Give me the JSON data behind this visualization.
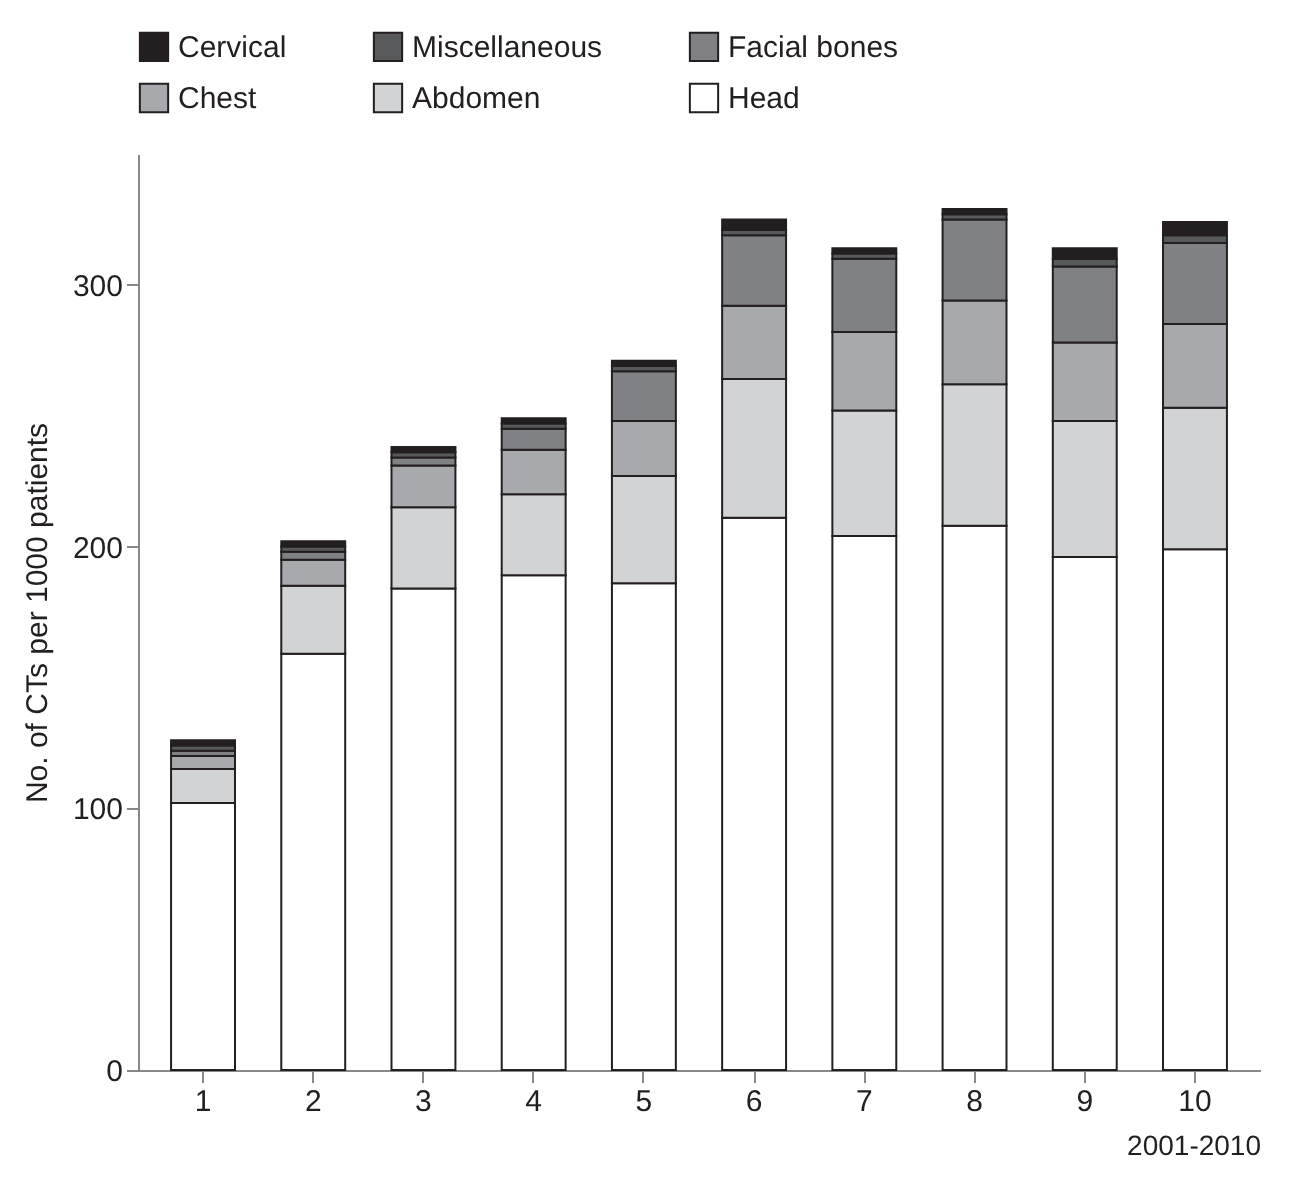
{
  "chart_data": {
    "type": "bar",
    "stacked": true,
    "xlabel": "2001-2010",
    "ylabel": "No. of CTs per 1000 patients",
    "categories": [
      "1",
      "2",
      "3",
      "4",
      "5",
      "6",
      "7",
      "8",
      "9",
      "10"
    ],
    "series": [
      {
        "name": "Head",
        "color": "#ffffff",
        "values": [
          102,
          159,
          184,
          189,
          186,
          211,
          204,
          208,
          196,
          199
        ]
      },
      {
        "name": "Abdomen",
        "color": "#d1d3d4",
        "values": [
          13,
          26,
          31,
          31,
          41,
          53,
          48,
          54,
          52,
          54
        ]
      },
      {
        "name": "Chest",
        "color": "#a7a9ac",
        "values": [
          5,
          10,
          16,
          17,
          21,
          28,
          30,
          32,
          30,
          32
        ]
      },
      {
        "name": "Facial bones",
        "color": "#808184",
        "values": [
          2,
          3,
          3,
          8,
          19,
          27,
          28,
          31,
          29,
          31
        ]
      },
      {
        "name": "Miscellaneous",
        "color": "#58595b",
        "values": [
          2,
          2,
          2,
          2,
          2,
          2,
          2,
          2,
          3,
          3
        ]
      },
      {
        "name": "Cervical",
        "color": "#231f20",
        "values": [
          2,
          2,
          2,
          2,
          2,
          4,
          2,
          2,
          4,
          5
        ]
      }
    ],
    "ylim": [
      0,
      350
    ],
    "yticks": [
      0,
      100,
      200,
      300
    ],
    "grid": false,
    "legend": "top"
  }
}
